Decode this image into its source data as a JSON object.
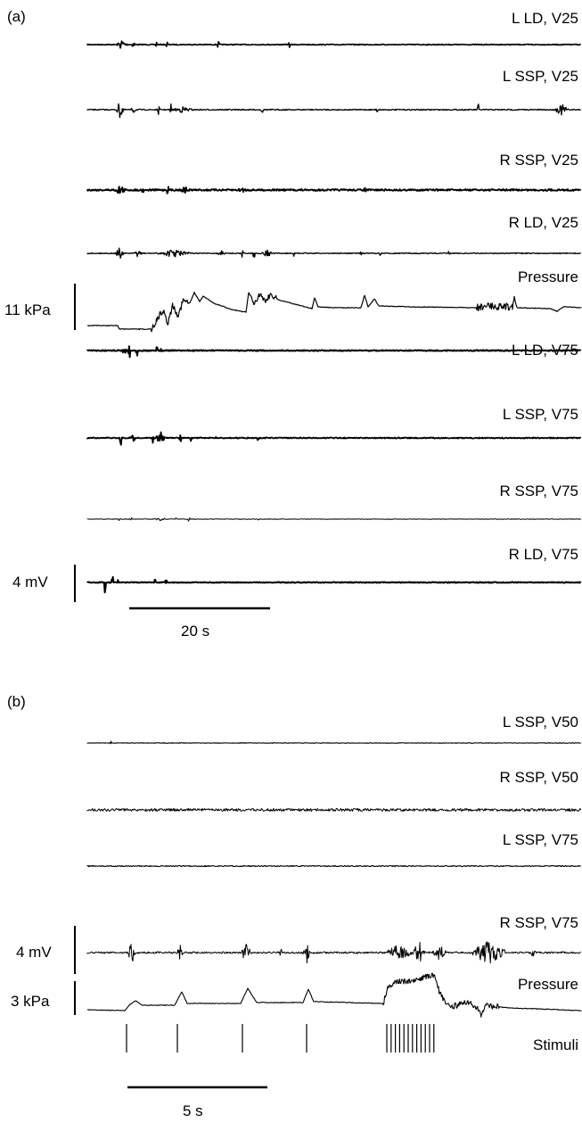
{
  "panel_a": {
    "label": "(a)",
    "traces": [
      {
        "name": "L LD, V25",
        "kind": "emg"
      },
      {
        "name": "L SSP, V25",
        "kind": "emg"
      },
      {
        "name": "R SSP, V25",
        "kind": "emg"
      },
      {
        "name": "R LD, V25",
        "kind": "emg"
      },
      {
        "name": "Pressure",
        "kind": "pressure"
      },
      {
        "name": "L LD, V75",
        "kind": "emg"
      },
      {
        "name": "L SSP, V75",
        "kind": "emg"
      },
      {
        "name": "R SSP, V75",
        "kind": "emg"
      },
      {
        "name": "R LD, V75",
        "kind": "emg"
      }
    ],
    "pressure_scale": "11 kPa",
    "voltage_scale": "4 mV",
    "time_scale": "20 s"
  },
  "panel_b": {
    "label": "(b)",
    "traces": [
      {
        "name": "L SSP, V50",
        "kind": "emg"
      },
      {
        "name": "R SSP, V50",
        "kind": "emg"
      },
      {
        "name": "L SSP, V75",
        "kind": "emg"
      },
      {
        "name": "R SSP, V75",
        "kind": "emg"
      },
      {
        "name": "Pressure",
        "kind": "pressure"
      },
      {
        "name": "Stimuli",
        "kind": "stimuli"
      }
    ],
    "voltage_scale": "4 mV",
    "pressure_scale": "3 kPa",
    "time_scale": "5 s"
  },
  "colors": {
    "trace": "#000000",
    "background": "#ffffff"
  }
}
